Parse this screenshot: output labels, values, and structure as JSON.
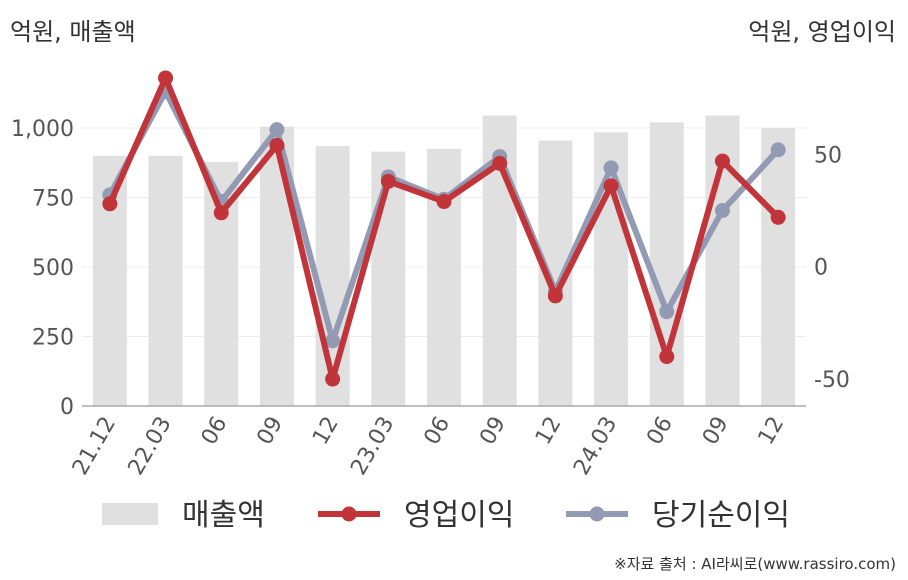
{
  "chart_data": {
    "type": "bar",
    "left_axis_label": "억원, 매출액",
    "right_axis_label": "억원, 영업이익",
    "categories": [
      "21.12",
      "22.03",
      "06",
      "09",
      "12",
      "23.03",
      "06",
      "09",
      "12",
      "24.03",
      "06",
      "09",
      "12"
    ],
    "left_axis": {
      "ylim": [
        0,
        1000
      ],
      "ticks": [
        "0",
        "250",
        "500",
        "750",
        "1,000"
      ],
      "tick_values": [
        0,
        250,
        500,
        750,
        1000
      ]
    },
    "right_axis": {
      "ylim": [
        -62,
        88
      ],
      "ticks": [
        "-50",
        "0",
        "50"
      ],
      "tick_values": [
        -50,
        0,
        50
      ]
    },
    "series": [
      {
        "name": "매출액",
        "type": "bar",
        "axis": "left",
        "color": "#e0e0e0",
        "values": [
          900,
          900,
          878,
          1005,
          935,
          915,
          925,
          1045,
          955,
          985,
          1020,
          1045,
          1000
        ]
      },
      {
        "name": "영업이익",
        "type": "line",
        "axis": "right",
        "color": "#c0343a",
        "values": [
          28,
          84,
          24,
          54,
          -50,
          38,
          29,
          46,
          -13,
          36,
          -40,
          47,
          22
        ]
      },
      {
        "name": "당기순이익",
        "type": "line",
        "axis": "right",
        "color": "#929bb3",
        "values": [
          32,
          78,
          29,
          61,
          -33,
          40,
          30,
          49,
          -11,
          44,
          -20,
          25,
          52
        ]
      }
    ],
    "legend_position": "bottom",
    "grid": true
  },
  "source": "※자료 출처 : AI라씨로(www.rassiro.com)"
}
